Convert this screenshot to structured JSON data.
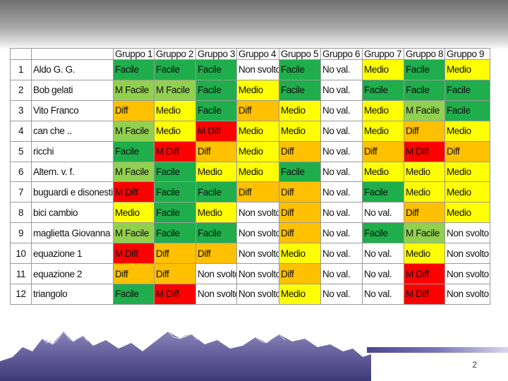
{
  "slide": {
    "page_number": "2"
  },
  "table": {
    "headers": [
      "",
      "",
      "Gruppo 1",
      "Gruppo 2",
      "Gruppo 3",
      "Gruppo 4",
      "Gruppo 5",
      "Gruppo 6",
      "Gruppo 7",
      "Gruppo 8",
      "Gruppo 9"
    ],
    "rows": [
      {
        "num": "1",
        "name": "Aldo G. G.",
        "values": [
          "Facile",
          "Facile",
          "Facile",
          "Non svolto",
          "Facile",
          "No val.",
          "Medio",
          "Facile",
          "Medio"
        ]
      },
      {
        "num": "2",
        "name": "Bob gelati",
        "values": [
          "M Facile",
          "M Facile",
          "Facile",
          "Medio",
          "Facile",
          "No val.",
          "Facile",
          "Facile",
          "Facile"
        ]
      },
      {
        "num": "3",
        "name": "Vito Franco",
        "values": [
          "Diff",
          "Medio",
          "Facile",
          "Diff",
          "Medio",
          "No val.",
          "Medio",
          "M Facile",
          "Facile"
        ]
      },
      {
        "num": "4",
        "name": "can che ..",
        "values": [
          "M Facile",
          "Medio",
          "M Diff",
          "Medio",
          "Medio",
          "No val.",
          "Medio",
          "Diff",
          "Medio"
        ]
      },
      {
        "num": "5",
        "name": "ricchi",
        "values": [
          "Facile",
          "M Diff",
          "Diff",
          "Medio",
          "Diff",
          "No val.",
          "Diff",
          "M Diff",
          "Diff"
        ]
      },
      {
        "num": "6",
        "name": "Altern. v. f.",
        "values": [
          "M Facile",
          "Facile",
          "Medio",
          "Medio",
          "Facile",
          "No val.",
          "Medio",
          "Medio",
          "Medio"
        ]
      },
      {
        "num": "7",
        "name": "buguardi e disonesti",
        "values": [
          "M Diff",
          "Facile",
          "Facile",
          "Diff",
          "Diff",
          "No val.",
          "Facile",
          "Medio",
          "Medio"
        ]
      },
      {
        "num": "8",
        "name": "bici cambio",
        "values": [
          "Medio",
          "Facile",
          "Medio",
          "Non svolto",
          "Diff",
          "No val.",
          "No val.",
          "Diff",
          "Medio"
        ]
      },
      {
        "num": "9",
        "name": "maglietta Giovanna",
        "values": [
          "M Facile",
          "Facile",
          "Facile",
          "Non svolto",
          "Diff",
          "No val.",
          "Facile",
          "M Facile",
          "Non svolto"
        ]
      },
      {
        "num": "10",
        "name": "equazione 1",
        "values": [
          "M Diff",
          "Diff",
          "Diff",
          "Non svolto",
          "Medio",
          "No val.",
          "No val.",
          "Medio",
          "Non svolto"
        ]
      },
      {
        "num": "11",
        "name": "equazione 2",
        "values": [
          "Diff",
          "Diff",
          "Non svolto",
          "Non svolto",
          "Diff",
          "No val.",
          "No val.",
          "M Diff",
          "Non svolto"
        ]
      },
      {
        "num": "12",
        "name": "triangolo",
        "values": [
          "Facile",
          "M Diff",
          "Non svolto",
          "Non svolto",
          "Medio",
          "No val.",
          "No val.",
          "M Diff",
          "Non svolto"
        ]
      }
    ]
  },
  "colors": {
    "Facile": "#1fae4b",
    "M Facile": "#92d050",
    "Medio": "#ffff00",
    "Diff": "#ffc000",
    "M Diff": "#ff0000",
    "Non svolto": "#ffffff",
    "No val.": "#ffffff"
  }
}
